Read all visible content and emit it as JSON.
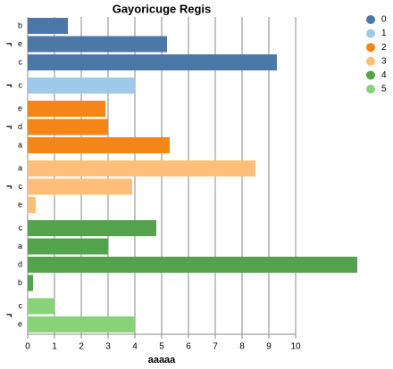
{
  "chart_data": {
    "type": "bar",
    "title": "Gayoricuge Regis",
    "x_label": "aaaaa",
    "xlim": [
      0,
      10
    ],
    "xticks": [
      0,
      1,
      2,
      3,
      4,
      5,
      6,
      7,
      8,
      9,
      10
    ],
    "grid": true,
    "legend": "top-right",
    "groups": [
      {
        "name": "0",
        "color": "#4c78a8",
        "label": "¬",
        "categories": [
          "b",
          "e",
          "c"
        ],
        "values": [
          1.5,
          5.2,
          9.3
        ]
      },
      {
        "name": "1",
        "color": "#9ecae9",
        "label": "¬",
        "categories": [
          "c"
        ],
        "values": [
          4.0
        ]
      },
      {
        "name": "2",
        "color": "#f58518",
        "label": "¬",
        "categories": [
          "e",
          "d",
          "a"
        ],
        "values": [
          2.9,
          3.0,
          5.3
        ]
      },
      {
        "name": "3",
        "color": "#ffbf79",
        "label": "¬",
        "categories": [
          "a",
          "c",
          "e"
        ],
        "values": [
          8.5,
          3.9,
          0.3
        ]
      },
      {
        "name": "4",
        "color": "#54a24b",
        "categories": [
          "c",
          "a",
          "d",
          "b"
        ],
        "values": [
          4.8,
          3.0,
          12.3,
          0.2
        ]
      },
      {
        "name": "5",
        "color": "#88d27a",
        "label": "¬",
        "categories": [
          "c",
          "e"
        ],
        "values": [
          1.0,
          4.0
        ]
      }
    ]
  }
}
